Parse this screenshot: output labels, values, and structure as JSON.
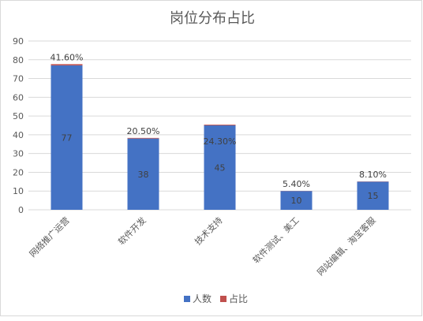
{
  "chart_data": {
    "type": "bar",
    "stacked": true,
    "title": "岗位分布占比",
    "categories": [
      "网络推广运营",
      "软件开发",
      "技术支持",
      "软件测试、美工",
      "网站编辑、淘宝客服"
    ],
    "series": [
      {
        "name": "人数",
        "values": [
          77,
          38,
          45,
          10,
          15
        ],
        "color": "#4472C4"
      },
      {
        "name": "占比",
        "values": [
          0.416,
          0.205,
          0.243,
          0.054,
          0.081
        ],
        "color": "#C0504D"
      }
    ],
    "value_labels": [
      "77",
      "38",
      "45",
      "10",
      "15"
    ],
    "percent_labels": [
      "41.60%",
      "20.50%",
      "24.30%",
      "5.40%",
      "8.10%"
    ],
    "y_ticks": [
      "0",
      "10",
      "20",
      "30",
      "40",
      "50",
      "60",
      "70",
      "80",
      "90"
    ],
    "ylim": [
      0,
      90
    ],
    "grid": true,
    "legend": "bottom"
  }
}
